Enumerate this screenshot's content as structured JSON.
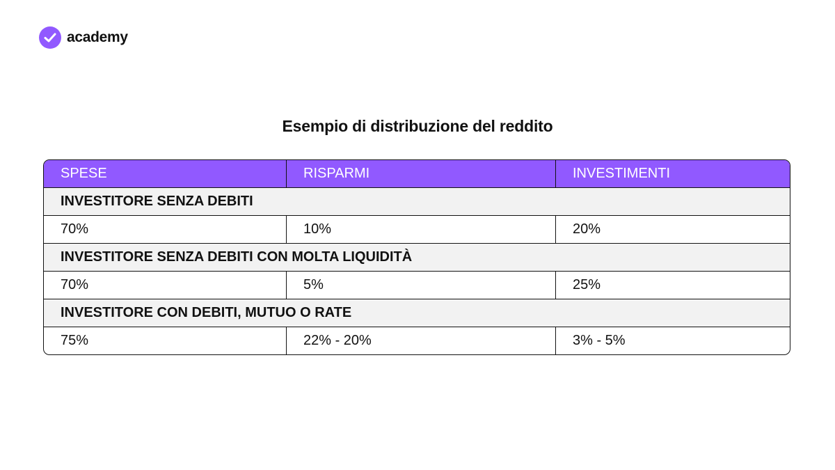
{
  "logo": {
    "text": "academy"
  },
  "title": "Esempio di distribuzione del reddito",
  "table": {
    "headers": [
      "SPESE",
      "RISPARMI",
      "INVESTIMENTI"
    ],
    "sections": [
      {
        "label": "INVESTITORE SENZA DEBITI",
        "cells": [
          "70%",
          "10%",
          "20%"
        ]
      },
      {
        "label": "INVESTITORE SENZA DEBITI CON MOLTA LIQUIDITÀ",
        "cells": [
          "70%",
          "5%",
          "25%"
        ]
      },
      {
        "label": "INVESTITORE CON DEBITI, MUTUO O RATE",
        "cells": [
          "75%",
          "22% - 20%",
          "3% - 5%"
        ]
      }
    ]
  }
}
